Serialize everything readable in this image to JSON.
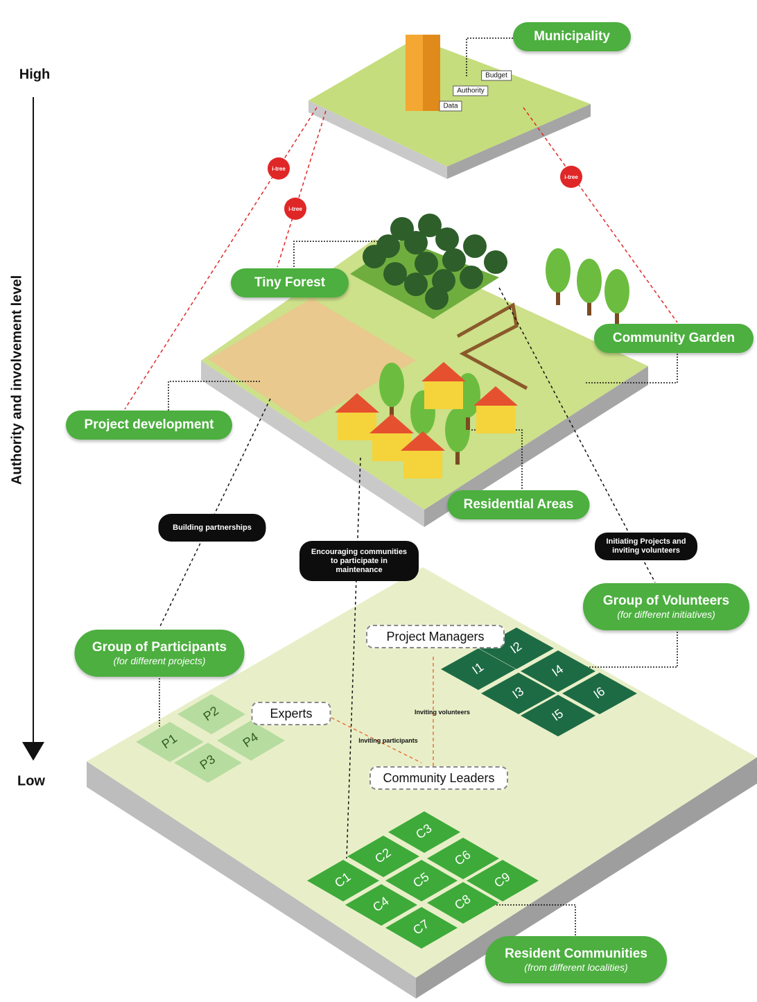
{
  "axis": {
    "title": "Authority and involvement level",
    "high": "High",
    "low": "Low"
  },
  "municipality": {
    "label": "Municipality",
    "tags": [
      "Budget",
      "Authority",
      "Data"
    ]
  },
  "itree": [
    "i-tree",
    "i-tree",
    "i-tree"
  ],
  "zones": {
    "tiny_forest": "Tiny Forest",
    "community_garden": "Community Garden",
    "project_development": "Project development",
    "residential_areas": "Residential Areas"
  },
  "actions": [
    "Building partnerships",
    "Encouraging communities to participate in maintenance",
    "Initiating Projects and inviting volunteers"
  ],
  "groups": [
    {
      "title": "Group of Participants",
      "subtitle": "(for different projects)"
    },
    {
      "title": "Group of Volunteers",
      "subtitle": "(for different initiatives)"
    },
    {
      "title": "Resident Communities",
      "subtitle": "(from different localities)"
    }
  ],
  "roles": [
    "Project Managers",
    "Experts",
    "Community Leaders"
  ],
  "flows": [
    "Inviting volunteers",
    "Inviting participants"
  ],
  "tiles": {
    "participants": [
      "P1",
      "P2",
      "P3",
      "P4"
    ],
    "volunteers": [
      "I1",
      "I2",
      "I3",
      "I4",
      "I5",
      "I6"
    ],
    "communities": [
      "C1",
      "C2",
      "C3",
      "C4",
      "C5",
      "C6",
      "C7",
      "C8",
      "C9"
    ]
  }
}
